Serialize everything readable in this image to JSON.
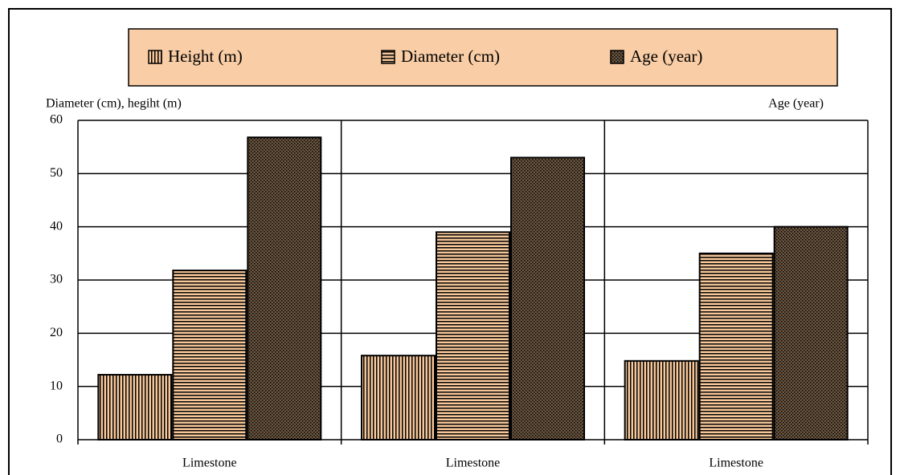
{
  "chart_data": {
    "type": "bar",
    "y_label": "Diameter (cm), hegiht (m)",
    "y2_label": "Age (year)",
    "categories": [
      "Limestone",
      "Limestone",
      "Limestone"
    ],
    "series": [
      {
        "name": "Height (m)",
        "color": "#f6c79a",
        "pattern": "vertical",
        "values": [
          12.2,
          15.8,
          14.8
        ]
      },
      {
        "name": "Diameter (cm)",
        "color": "#f6c79a",
        "pattern": "horizontal",
        "values": [
          31.8,
          39,
          35
        ]
      },
      {
        "name": "Age (year)",
        "color": "#6b5640",
        "pattern": "dots",
        "values": [
          56.8,
          53,
          40
        ]
      }
    ],
    "ylim": [
      0,
      60
    ],
    "yticks": [
      0,
      10,
      20,
      30,
      40,
      50,
      60
    ],
    "grid": true,
    "legend": "top"
  }
}
